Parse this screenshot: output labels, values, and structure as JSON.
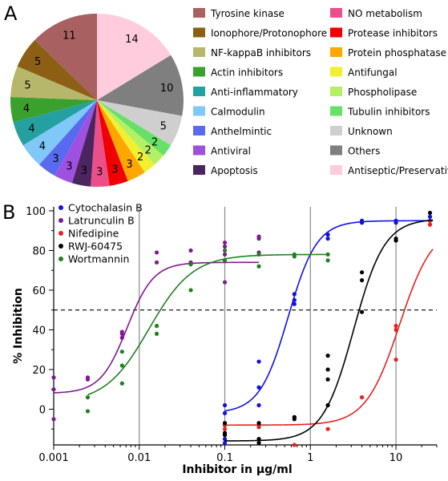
{
  "panels": {
    "a_label": "A",
    "b_label": "B"
  },
  "chart_data": [
    {
      "type": "pie",
      "panel": "A",
      "start": "12 o'clock, clockwise",
      "slices": [
        {
          "label": "Antiseptic/Preservative",
          "value": 14,
          "color": "#ffccdd"
        },
        {
          "label": "Others",
          "value": 10,
          "color": "#7f7f7f"
        },
        {
          "label": "Unknown",
          "value": 5,
          "color": "#cfcfcf"
        },
        {
          "label": "Tubulin inhibitors",
          "value": 2,
          "color": "#66e066"
        },
        {
          "label": "Phospholipase",
          "value": 2,
          "color": "#b3f066"
        },
        {
          "label": "Antifungal",
          "value": 2,
          "color": "#f0f030"
        },
        {
          "label": "Protein phosphatase",
          "value": 3,
          "color": "#ffa600"
        },
        {
          "label": "Protease inhibitors",
          "value": 3,
          "color": "#f00000"
        },
        {
          "label": "NO metabolism",
          "value": 3,
          "color": "#ea4f8a"
        },
        {
          "label": "Apoptosis",
          "value": 3,
          "color": "#4a2560"
        },
        {
          "label": "Antiviral",
          "value": 3,
          "color": "#a050e0"
        },
        {
          "label": "Anthelmintic",
          "value": 3,
          "color": "#5a6af0"
        },
        {
          "label": "Calmodulin",
          "value": 4,
          "color": "#80c8f8"
        },
        {
          "label": "Anti-inflammatory",
          "value": 4,
          "color": "#25a0a0"
        },
        {
          "label": "Actin inhibitors",
          "value": 4,
          "color": "#3aa02e"
        },
        {
          "label": "NF-kappaB inhibitors",
          "value": 5,
          "color": "#b7b76c"
        },
        {
          "label": "Ionophore/Protonophore",
          "value": 5,
          "color": "#8c5f14"
        },
        {
          "label": "Tyrosine kinase",
          "value": 11,
          "color": "#a86060"
        }
      ],
      "legend_left": [
        "Tyrosine kinase",
        "Ionophore/Protonophore",
        "NF-kappaB inhibitors",
        "Actin inhibitors",
        "Anti-inflammatory",
        "Calmodulin",
        "Anthelmintic",
        "Antiviral",
        "Apoptosis"
      ],
      "legend_right": [
        "NO metabolism",
        "Protease inhibitors",
        "Protein phosphatase",
        "Antifungal",
        "Phospholipase",
        "Tubulin inhibitors",
        "Unknown",
        "Others",
        "Antiseptic/Preservative"
      ]
    },
    {
      "type": "scatter",
      "panel": "B",
      "xlabel": "Inhibitor in µg/ml",
      "ylabel": "% Inhibition",
      "xscale": "log",
      "xlim": [
        0.001,
        30
      ],
      "ylim": [
        -18,
        102
      ],
      "xticks": [
        0.001,
        0.01,
        0.1,
        1,
        10
      ],
      "xtick_labels": [
        "0.001",
        "0.01",
        "0.1",
        "1",
        "10"
      ],
      "yticks": [
        0,
        20,
        40,
        60,
        80,
        100
      ],
      "ytick_labels": [
        "0",
        "20",
        "40",
        "60",
        "80",
        "100"
      ],
      "vlines": [
        0.01,
        0.1,
        1,
        10
      ],
      "hline": 50,
      "legend_position": "top-left",
      "series": [
        {
          "name": "Cytochalasin B",
          "color": "#1010e8",
          "curve": {
            "bottom": -2,
            "top": 95,
            "ec50": 0.55,
            "hill": 2.6,
            "x_from": 0.1,
            "x_to": 27
          },
          "points": [
            [
              0.1,
              -17
            ],
            [
              0.1,
              -15
            ],
            [
              0.1,
              -8
            ],
            [
              0.1,
              -2
            ],
            [
              0.1,
              2
            ],
            [
              0.25,
              2
            ],
            [
              0.25,
              11
            ],
            [
              0.25,
              24
            ],
            [
              0.65,
              53
            ],
            [
              0.65,
              55
            ],
            [
              0.65,
              58
            ],
            [
              1.6,
              86
            ],
            [
              1.6,
              88
            ],
            [
              4,
              94
            ],
            [
              4,
              95
            ],
            [
              10,
              94
            ],
            [
              10,
              95
            ],
            [
              25,
              95
            ],
            [
              25,
              97
            ]
          ]
        },
        {
          "name": "Latrunculin B",
          "color": "#801890",
          "curve": {
            "bottom": 8,
            "top": 74,
            "ec50": 0.0072,
            "hill": 2.8,
            "x_from": 0.001,
            "x_to": 0.25
          },
          "points": [
            [
              0.001,
              -5
            ],
            [
              0.001,
              10
            ],
            [
              0.001,
              16
            ],
            [
              0.0025,
              15
            ],
            [
              0.0025,
              16
            ],
            [
              0.0063,
              36
            ],
            [
              0.0063,
              38
            ],
            [
              0.0063,
              39
            ],
            [
              0.016,
              74
            ],
            [
              0.016,
              79
            ],
            [
              0.04,
              74
            ],
            [
              0.04,
              80
            ],
            [
              0.1,
              64
            ],
            [
              0.1,
              78
            ],
            [
              0.1,
              82
            ],
            [
              0.1,
              84
            ],
            [
              0.25,
              79
            ],
            [
              0.25,
              86
            ],
            [
              0.25,
              87
            ]
          ]
        },
        {
          "name": "Nifedipine",
          "color": "#e82020",
          "curve": {
            "bottom": -8,
            "top": 93,
            "ec50": 11,
            "hill": 2.2,
            "x_from": 0.1,
            "x_to": 27
          },
          "points": [
            [
              0.1,
              -10
            ],
            [
              0.1,
              -8
            ],
            [
              0.25,
              -9
            ],
            [
              0.25,
              -8
            ],
            [
              0.65,
              -18
            ],
            [
              0.65,
              -4
            ],
            [
              1.6,
              -10
            ],
            [
              1.6,
              2
            ],
            [
              4,
              6
            ],
            [
              10,
              25
            ],
            [
              10,
              40
            ],
            [
              10,
              42
            ],
            [
              25,
              93
            ],
            [
              25,
              95
            ]
          ]
        },
        {
          "name": "RWJ-60475",
          "color": "#000000",
          "curve": {
            "bottom": -16,
            "top": 96,
            "ec50": 3.2,
            "hill": 2.4,
            "x_from": 0.1,
            "x_to": 27
          },
          "points": [
            [
              0.1,
              -13
            ],
            [
              0.1,
              -12
            ],
            [
              0.1,
              -7
            ],
            [
              0.25,
              -17
            ],
            [
              0.25,
              -15
            ],
            [
              0.25,
              -7
            ],
            [
              0.65,
              -5
            ],
            [
              0.65,
              -4
            ],
            [
              1.6,
              2
            ],
            [
              1.6,
              15
            ],
            [
              1.6,
              20
            ],
            [
              1.6,
              27
            ],
            [
              4,
              49
            ],
            [
              4,
              65
            ],
            [
              4,
              69
            ],
            [
              10,
              85
            ],
            [
              10,
              86
            ],
            [
              25,
              99
            ]
          ]
        },
        {
          "name": "Wortmannin",
          "color": "#208020",
          "curve": {
            "bottom": 3,
            "top": 78,
            "ec50": 0.013,
            "hill": 1.7,
            "x_from": 0.0025,
            "x_to": 1.6
          },
          "points": [
            [
              0.0025,
              -1
            ],
            [
              0.0025,
              6
            ],
            [
              0.0063,
              13
            ],
            [
              0.0063,
              22
            ],
            [
              0.0063,
              29
            ],
            [
              0.016,
              38
            ],
            [
              0.016,
              42
            ],
            [
              0.04,
              60
            ],
            [
              0.04,
              73
            ],
            [
              0.1,
              75
            ],
            [
              0.1,
              80
            ],
            [
              0.25,
              72
            ],
            [
              0.25,
              78
            ],
            [
              0.65,
              77
            ],
            [
              0.65,
              78
            ],
            [
              1.6,
              75
            ],
            [
              1.6,
              78
            ]
          ]
        }
      ]
    }
  ]
}
